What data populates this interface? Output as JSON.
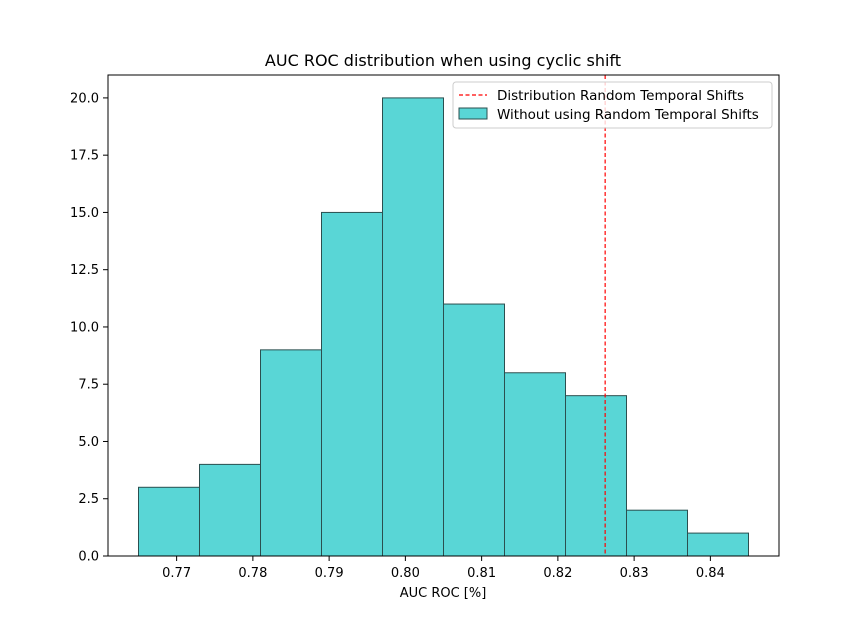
{
  "chart_data": {
    "type": "bar",
    "title": "AUC ROC distribution when using cyclic shift",
    "xlabel": "AUC ROC [%]",
    "ylabel": "",
    "xlim": [
      0.761,
      0.849
    ],
    "ylim": [
      0,
      21
    ],
    "bins": [
      {
        "x0": 0.765,
        "x1": 0.773,
        "count": 3
      },
      {
        "x0": 0.773,
        "x1": 0.781,
        "count": 4
      },
      {
        "x0": 0.781,
        "x1": 0.789,
        "count": 9
      },
      {
        "x0": 0.789,
        "x1": 0.797,
        "count": 15
      },
      {
        "x0": 0.797,
        "x1": 0.805,
        "count": 20
      },
      {
        "x0": 0.805,
        "x1": 0.813,
        "count": 11
      },
      {
        "x0": 0.813,
        "x1": 0.821,
        "count": 8
      },
      {
        "x0": 0.821,
        "x1": 0.829,
        "count": 7
      },
      {
        "x0": 0.829,
        "x1": 0.837,
        "count": 2
      },
      {
        "x0": 0.837,
        "x1": 0.845,
        "count": 1
      }
    ],
    "vline": {
      "x": 0.8262,
      "color": "#ff0000",
      "style": "dashed"
    },
    "xticks": [
      0.77,
      0.78,
      0.79,
      0.8,
      0.81,
      0.82,
      0.83,
      0.84
    ],
    "xtick_labels": [
      "0.77",
      "0.78",
      "0.79",
      "0.80",
      "0.81",
      "0.82",
      "0.83",
      "0.84"
    ],
    "yticks": [
      0,
      2.5,
      5,
      7.5,
      10,
      12.5,
      15,
      17.5,
      20
    ],
    "ytick_labels": [
      "0.0",
      "2.5",
      "5.0",
      "7.5",
      "10.0",
      "12.5",
      "15.0",
      "17.5",
      "20.0"
    ],
    "grid": false,
    "legend_position": "top-right",
    "legend": [
      {
        "label": "Distribution Random Temporal Shifts",
        "kind": "line",
        "color": "#ff0000"
      },
      {
        "label": "Without using Random Temporal Shifts",
        "kind": "patch",
        "color": "#59d6d6"
      }
    ],
    "colors": {
      "bar_fill": "#59d6d6",
      "bar_edge": "#2b4f4f",
      "vline": "#ff0000"
    }
  }
}
